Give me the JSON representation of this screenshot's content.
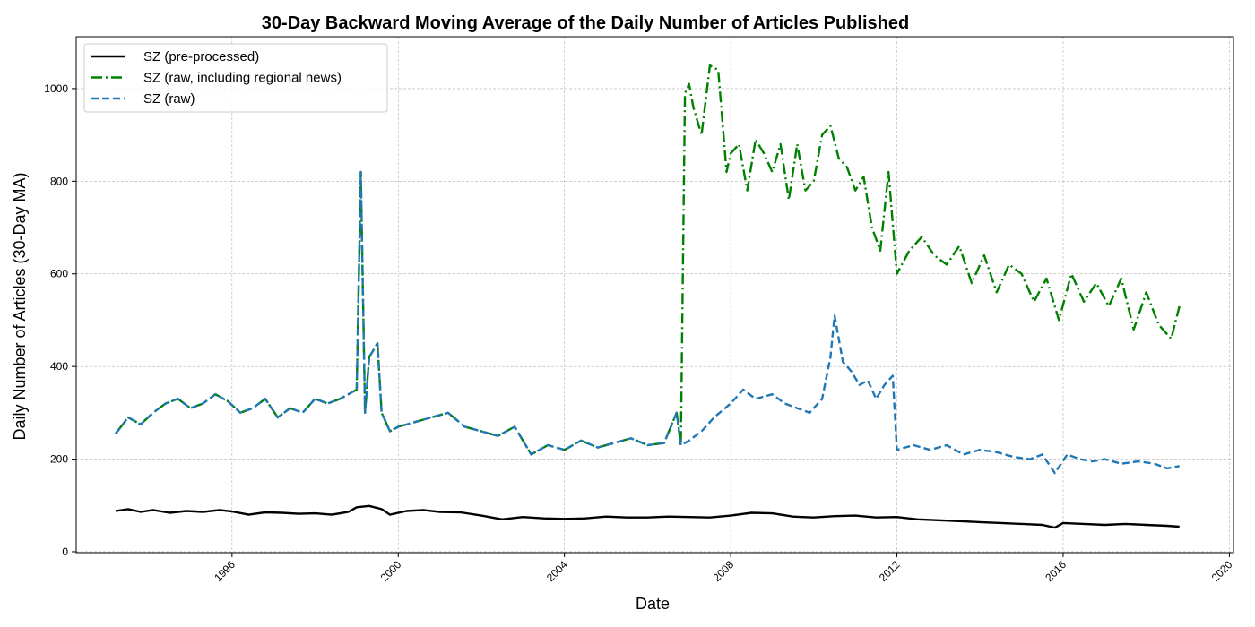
{
  "chart_data": {
    "type": "line",
    "title": "30-Day Backward Moving Average of the Daily Number of Articles Published",
    "xlabel": "Date",
    "ylabel": "Daily Number of Articles (30-Day MA)",
    "xlim": [
      1992.25,
      2020.1
    ],
    "ylim": [
      -2,
      1112
    ],
    "x_ticks": [
      1996,
      2000,
      2004,
      2008,
      2012,
      2016,
      2020
    ],
    "x_tick_labels": [
      "1996",
      "2000",
      "2004",
      "2008",
      "2012",
      "2016",
      "2020"
    ],
    "y_ticks": [
      0,
      200,
      400,
      600,
      800,
      1000
    ],
    "y_tick_labels": [
      "0",
      "200",
      "400",
      "600",
      "800",
      "1000"
    ],
    "grid": true,
    "legend_position": "top-left",
    "series": [
      {
        "name": "SZ (pre-processed)",
        "color": "#000000",
        "style": "solid",
        "x": [
          1993.2,
          1993.5,
          1993.8,
          1994.1,
          1994.5,
          1994.9,
          1995.3,
          1995.7,
          1996.0,
          1996.4,
          1996.8,
          1997.2,
          1997.6,
          1998.0,
          1998.4,
          1998.8,
          1999.0,
          1999.3,
          1999.6,
          1999.8,
          2000.2,
          2000.6,
          2001.0,
          2001.5,
          2002.0,
          2002.5,
          2003.0,
          2003.5,
          2004.0,
          2004.5,
          2005.0,
          2005.5,
          2006.0,
          2006.5,
          2007.0,
          2007.5,
          2008.0,
          2008.5,
          2009.0,
          2009.5,
          2010.0,
          2010.5,
          2011.0,
          2011.5,
          2012.0,
          2012.5,
          2013.0,
          2013.5,
          2014.0,
          2014.5,
          2015.0,
          2015.5,
          2015.8,
          2016.0,
          2016.5,
          2017.0,
          2017.5,
          2018.0,
          2018.5,
          2018.8
        ],
        "y": [
          88,
          92,
          86,
          90,
          84,
          88,
          86,
          90,
          87,
          80,
          85,
          84,
          82,
          83,
          80,
          86,
          96,
          99,
          92,
          80,
          88,
          90,
          86,
          85,
          78,
          70,
          75,
          72,
          71,
          72,
          76,
          74,
          74,
          76,
          75,
          74,
          78,
          84,
          83,
          76,
          74,
          77,
          78,
          74,
          75,
          70,
          68,
          66,
          64,
          62,
          60,
          58,
          52,
          62,
          60,
          58,
          60,
          58,
          56,
          54
        ]
      },
      {
        "name": "SZ (raw, including regional news)",
        "color": "#008000",
        "style": "dashdot",
        "x": [
          1993.2,
          1993.5,
          1993.8,
          1994.1,
          1994.4,
          1994.7,
          1995.0,
          1995.3,
          1995.6,
          1995.9,
          1996.2,
          1996.5,
          1996.8,
          1997.1,
          1997.4,
          1997.7,
          1998.0,
          1998.3,
          1998.6,
          1998.8,
          1999.0,
          1999.1,
          1999.2,
          1999.3,
          1999.5,
          1999.6,
          1999.8,
          2000.0,
          2000.4,
          2000.8,
          2001.2,
          2001.6,
          2002.0,
          2002.4,
          2002.8,
          2003.2,
          2003.6,
          2004.0,
          2004.4,
          2004.8,
          2005.2,
          2005.6,
          2006.0,
          2006.4,
          2006.7,
          2006.8,
          2006.9,
          2007.0,
          2007.1,
          2007.3,
          2007.5,
          2007.7,
          2007.9,
          2008.0,
          2008.2,
          2008.4,
          2008.6,
          2008.8,
          2009.0,
          2009.2,
          2009.4,
          2009.6,
          2009.8,
          2010.0,
          2010.2,
          2010.4,
          2010.6,
          2010.8,
          2011.0,
          2011.2,
          2011.4,
          2011.6,
          2011.8,
          2012.0,
          2012.3,
          2012.6,
          2012.9,
          2013.2,
          2013.5,
          2013.8,
          2014.1,
          2014.4,
          2014.7,
          2015.0,
          2015.3,
          2015.6,
          2015.9,
          2016.2,
          2016.5,
          2016.8,
          2017.1,
          2017.4,
          2017.7,
          2018.0,
          2018.3,
          2018.6,
          2018.8
        ],
        "y": [
          255,
          290,
          275,
          300,
          320,
          330,
          310,
          320,
          340,
          325,
          300,
          310,
          330,
          290,
          310,
          300,
          330,
          320,
          330,
          340,
          350,
          820,
          300,
          420,
          450,
          300,
          260,
          270,
          280,
          290,
          300,
          270,
          260,
          250,
          270,
          210,
          230,
          220,
          240,
          225,
          235,
          245,
          230,
          235,
          300,
          230,
          990,
          1010,
          960,
          900,
          1050,
          1040,
          820,
          860,
          880,
          780,
          890,
          860,
          820,
          880,
          760,
          880,
          780,
          800,
          900,
          920,
          850,
          830,
          780,
          810,
          700,
          650,
          820,
          600,
          650,
          680,
          640,
          620,
          660,
          580,
          640,
          560,
          620,
          600,
          540,
          590,
          500,
          600,
          540,
          580,
          530,
          590,
          480,
          560,
          490,
          460,
          530
        ]
      },
      {
        "name": "SZ (raw)",
        "color": "#1f77b4",
        "style": "dashed",
        "x": [
          1993.2,
          1993.5,
          1993.8,
          1994.1,
          1994.4,
          1994.7,
          1995.0,
          1995.3,
          1995.6,
          1995.9,
          1996.2,
          1996.5,
          1996.8,
          1997.1,
          1997.4,
          1997.7,
          1998.0,
          1998.3,
          1998.6,
          1998.8,
          1999.0,
          1999.1,
          1999.2,
          1999.3,
          1999.5,
          1999.6,
          1999.8,
          2000.0,
          2000.4,
          2000.8,
          2001.2,
          2001.6,
          2002.0,
          2002.4,
          2002.8,
          2003.2,
          2003.6,
          2004.0,
          2004.4,
          2004.8,
          2005.2,
          2005.6,
          2006.0,
          2006.4,
          2006.7,
          2006.8,
          2007.0,
          2007.3,
          2007.6,
          2008.0,
          2008.3,
          2008.6,
          2009.0,
          2009.3,
          2009.6,
          2009.9,
          2010.2,
          2010.4,
          2010.5,
          2010.7,
          2010.9,
          2011.1,
          2011.3,
          2011.5,
          2011.7,
          2011.9,
          2012.0,
          2012.4,
          2012.8,
          2013.2,
          2013.6,
          2014.0,
          2014.4,
          2014.8,
          2015.2,
          2015.5,
          2015.8,
          2016.1,
          2016.4,
          2016.7,
          2017.0,
          2017.4,
          2017.8,
          2018.2,
          2018.5,
          2018.8
        ],
        "y": [
          255,
          290,
          275,
          300,
          320,
          330,
          310,
          320,
          340,
          325,
          300,
          310,
          330,
          290,
          310,
          300,
          330,
          320,
          330,
          340,
          350,
          820,
          300,
          420,
          450,
          300,
          260,
          270,
          280,
          290,
          300,
          270,
          260,
          250,
          270,
          210,
          230,
          220,
          240,
          225,
          235,
          245,
          230,
          235,
          300,
          230,
          240,
          260,
          290,
          320,
          350,
          330,
          340,
          320,
          310,
          300,
          330,
          420,
          510,
          410,
          390,
          360,
          370,
          330,
          360,
          380,
          220,
          230,
          220,
          230,
          210,
          220,
          215,
          205,
          200,
          210,
          170,
          210,
          200,
          195,
          200,
          190,
          195,
          190,
          180,
          185
        ]
      }
    ]
  }
}
